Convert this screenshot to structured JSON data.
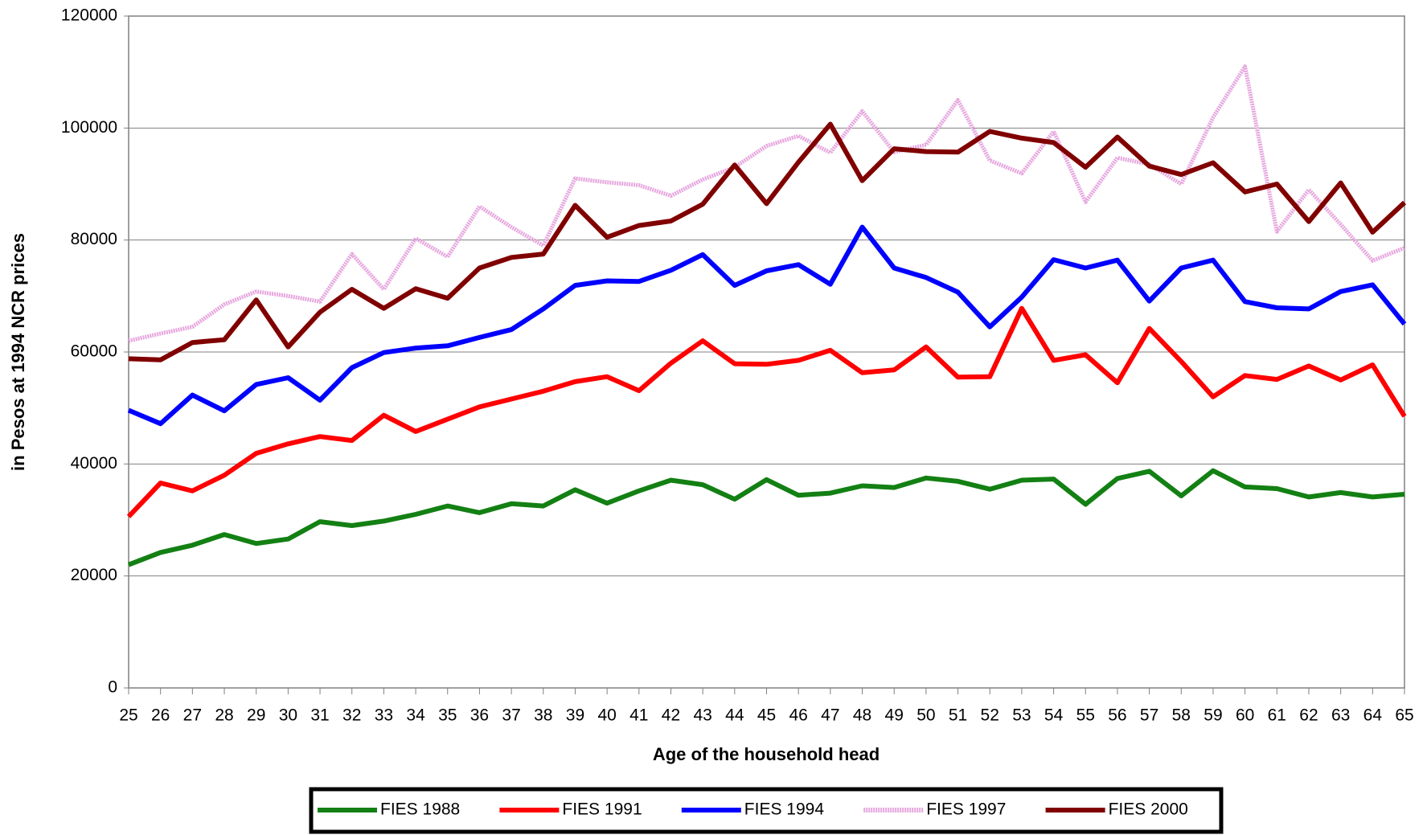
{
  "chart_data": {
    "type": "line",
    "xlabel": "Age of the household head",
    "ylabel": "in Pesos at 1994 NCR prices",
    "categories": [
      "25",
      "26",
      "27",
      "28",
      "29",
      "30",
      "31",
      "32",
      "33",
      "34",
      "35",
      "36",
      "37",
      "38",
      "39",
      "40",
      "41",
      "42",
      "43",
      "44",
      "45",
      "46",
      "47",
      "48",
      "49",
      "50",
      "51",
      "52",
      "53",
      "54",
      "55",
      "56",
      "57",
      "58",
      "59",
      "60",
      "61",
      "62",
      "63",
      "64",
      "65"
    ],
    "ylim": [
      0,
      120000
    ],
    "yticks": [
      0,
      20000,
      40000,
      60000,
      80000,
      100000,
      120000
    ],
    "grid": true,
    "legend": "bottom",
    "series": [
      {
        "name": "FIES 1988",
        "color": "#138013",
        "values": [
          22000,
          24200,
          25500,
          27400,
          25800,
          26600,
          29700,
          29000,
          29800,
          31000,
          32500,
          31300,
          32900,
          32500,
          35400,
          33000,
          35200,
          37100,
          36300,
          33700,
          37200,
          34400,
          34800,
          36100,
          35800,
          37500,
          36900,
          35500,
          37100,
          37300,
          32800,
          37400,
          38700,
          34300,
          38800,
          35900,
          35600,
          34100,
          34900,
          34100,
          34600
        ]
      },
      {
        "name": "FIES 1991",
        "color": "#ff0000",
        "values": [
          30600,
          36600,
          35200,
          38000,
          41900,
          43600,
          44900,
          44200,
          48700,
          45800,
          48000,
          50200,
          51600,
          53000,
          54700,
          55600,
          53100,
          58000,
          62000,
          57900,
          57800,
          58500,
          60300,
          56300,
          56800,
          60900,
          55500,
          55600,
          67800,
          58500,
          59500,
          54500,
          64200,
          58300,
          52000,
          55800,
          55100,
          57500,
          55000,
          57700,
          48500
        ]
      },
      {
        "name": "FIES 1994",
        "color": "#0000ff",
        "values": [
          49600,
          47200,
          52300,
          49500,
          54200,
          55400,
          51400,
          57200,
          59900,
          60700,
          61100,
          62600,
          64000,
          67700,
          71900,
          72700,
          72600,
          74600,
          77400,
          71900,
          74500,
          75600,
          72100,
          82300,
          75000,
          73300,
          70700,
          64500,
          69800,
          76500,
          75000,
          76400,
          69100,
          75000,
          76400,
          69000,
          67900,
          67700,
          70800,
          72000,
          65000
        ]
      },
      {
        "name": "FIES 1997",
        "color": "#e6a6de",
        "values": [
          62000,
          63300,
          64500,
          68500,
          70800,
          70000,
          69000,
          77500,
          71200,
          80300,
          77000,
          86000,
          82300,
          79000,
          91000,
          90300,
          89800,
          87900,
          90800,
          93000,
          96800,
          98600,
          95600,
          103000,
          95700,
          97000,
          105000,
          94200,
          91900,
          99400,
          86800,
          94700,
          93500,
          90000,
          101900,
          111000,
          81500,
          89000,
          82800,
          76300,
          78600
        ]
      },
      {
        "name": "FIES 2000",
        "color": "#800000",
        "values": [
          58800,
          58600,
          61700,
          62200,
          69300,
          60900,
          67100,
          71200,
          67800,
          71300,
          69600,
          75000,
          76900,
          77500,
          86200,
          80500,
          82600,
          83400,
          86400,
          93400,
          86500,
          93900,
          100700,
          90600,
          96300,
          95800,
          95700,
          99400,
          98200,
          97400,
          93000,
          98400,
          93200,
          91700,
          93800,
          88600,
          90000,
          83300,
          90200,
          81400,
          86700
        ]
      }
    ]
  }
}
